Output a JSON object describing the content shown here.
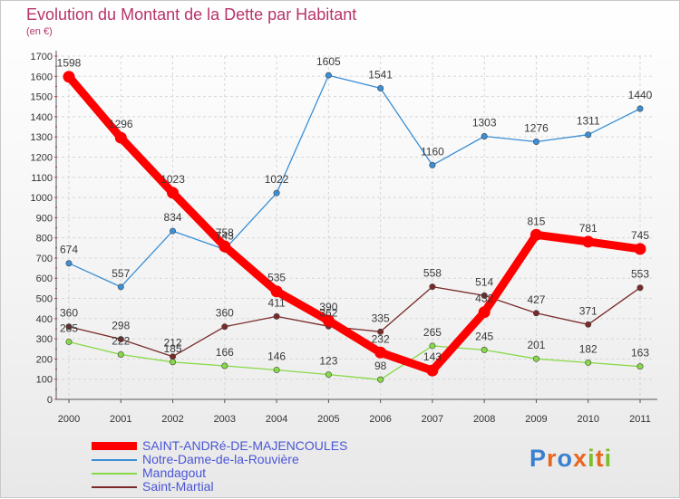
{
  "title": "Evolution du Montant de la Dette par Habitant",
  "unit": "(en €)",
  "logo": {
    "letters": [
      {
        "ch": "P",
        "color": "#3a7fd0"
      },
      {
        "ch": "r",
        "color": "#e8661f"
      },
      {
        "ch": "o",
        "color": "#3a7fd0"
      },
      {
        "ch": "x",
        "color": "#e8661f"
      },
      {
        "ch": "i",
        "color": "#7bbf2a"
      },
      {
        "ch": "t",
        "color": "#e8661f"
      },
      {
        "ch": "i",
        "color": "#7bbf2a"
      }
    ]
  },
  "chart_data": {
    "type": "line",
    "title": "Evolution du Montant de la Dette par Habitant",
    "ylabel": "(en €)",
    "xlabel": "",
    "ylim": [
      0,
      1700
    ],
    "yticks": [
      "0",
      "100",
      "200",
      "300",
      "400",
      "500",
      "600",
      "700",
      "800",
      "900",
      "1000",
      "1100",
      "1200",
      "1300",
      "1400",
      "1500",
      "1600",
      "1700"
    ],
    "x": [
      "2000",
      "2001",
      "2002",
      "2003",
      "2004",
      "2005",
      "2006",
      "2007",
      "2008",
      "2009",
      "2010",
      "2011"
    ],
    "grid": true,
    "legend_position": "bottom-left",
    "series": [
      {
        "name": "SAINT-ANDRé-DE-MAJENCOULES",
        "color": "#ff0000",
        "values": [
          1598,
          1296,
          1023,
          758,
          535,
          390,
          232,
          143,
          432,
          815,
          781,
          745
        ],
        "labels": [
          "1598",
          "1296",
          "1023",
          "758",
          "535",
          "390",
          "232",
          "143",
          "432",
          "815",
          "781",
          "745"
        ]
      },
      {
        "name": "Notre-Dame-de-la-Rouvière",
        "color": "#3a8fd6",
        "values": [
          674,
          557,
          834,
          743,
          1022,
          1605,
          1541,
          1160,
          1303,
          1276,
          1311,
          1440
        ],
        "labels": [
          "674",
          "557",
          "834",
          "743",
          "1022",
          "1605",
          "1541",
          "1160",
          "1303",
          "1276",
          "1311",
          "1440"
        ]
      },
      {
        "name": "Mandagout",
        "color": "#88d948",
        "values": [
          285,
          222,
          185,
          166,
          146,
          123,
          98,
          265,
          245,
          201,
          182,
          163
        ],
        "labels": [
          "285",
          "222",
          "185",
          "166",
          "146",
          "123",
          "98",
          "265",
          "245",
          "201",
          "182",
          "163"
        ]
      },
      {
        "name": "Saint-Martial",
        "color": "#7a2a2a",
        "values": [
          360,
          298,
          212,
          360,
          411,
          362,
          335,
          558,
          514,
          427,
          371,
          553
        ],
        "labels": [
          "360",
          "298",
          "212",
          "360",
          "411",
          "362",
          "335",
          "558",
          "514",
          "427",
          "371",
          "553"
        ]
      }
    ]
  }
}
